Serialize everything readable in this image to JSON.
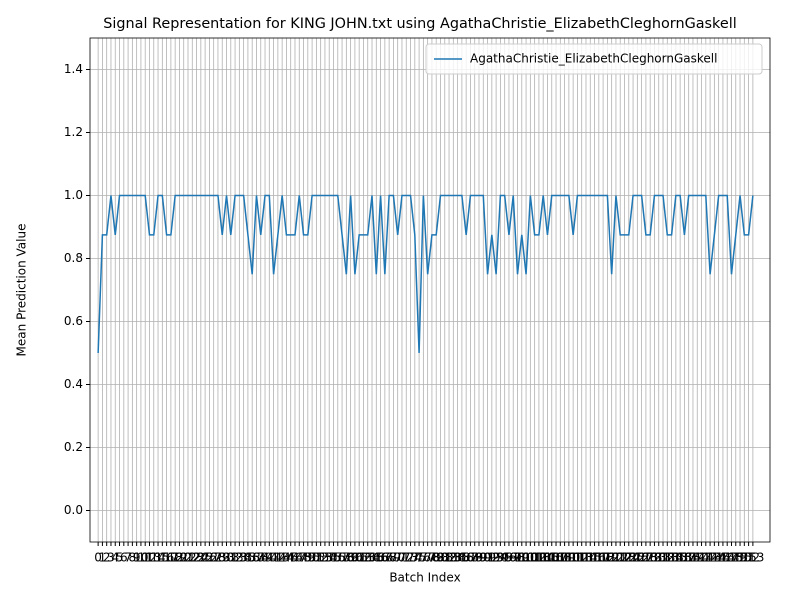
{
  "chart_data": {
    "type": "line",
    "title": "Signal Representation for KING JOHN.txt using AgathaChristie_ElizabethCleghornGaskell",
    "xlabel": "Batch Index",
    "ylabel": "Mean Prediction Value",
    "x": [
      0,
      1,
      2,
      3,
      4,
      5,
      6,
      7,
      8,
      9,
      10,
      11,
      12,
      13,
      14,
      15,
      16,
      17,
      18,
      19,
      20,
      21,
      22,
      23,
      24,
      25,
      26,
      27,
      28,
      29,
      30,
      31,
      32,
      33,
      34,
      35,
      36,
      37,
      38,
      39,
      40,
      41,
      42,
      43,
      44,
      45,
      46,
      47,
      48,
      49,
      50,
      51,
      52,
      53,
      54,
      55,
      56,
      57,
      58,
      59,
      60,
      61,
      62,
      63,
      64,
      65,
      66,
      67,
      68,
      69,
      70,
      71,
      72,
      73,
      74,
      75,
      76,
      77,
      78,
      79,
      80,
      81,
      82,
      83,
      84,
      85,
      86,
      87,
      88,
      89,
      90,
      91,
      92,
      93,
      94,
      95,
      96,
      97,
      98,
      99,
      100,
      101,
      102,
      103,
      104,
      105,
      106,
      107,
      108,
      109,
      110,
      111,
      112,
      113,
      114,
      115,
      116,
      117,
      118,
      119,
      120,
      121,
      122,
      123,
      124,
      125,
      126,
      127,
      128,
      129,
      130,
      131,
      132,
      133,
      134,
      135,
      136,
      137,
      138,
      139,
      140,
      141,
      142,
      143,
      144,
      145,
      146,
      147,
      148,
      149,
      150,
      151,
      152,
      153
    ],
    "series": [
      {
        "name": "AgathaChristie_ElizabethCleghornGaskell",
        "color": "#1f77b4",
        "values": [
          0.5,
          0.875,
          0.875,
          1,
          0.875,
          1,
          1,
          1,
          1,
          1,
          1,
          1,
          0.875,
          0.875,
          1,
          1,
          0.875,
          0.875,
          1,
          1,
          1,
          1,
          1,
          1,
          1,
          1,
          1,
          1,
          1,
          0.875,
          1,
          0.875,
          1,
          1,
          1,
          0.875,
          0.75,
          1,
          0.875,
          1,
          1,
          0.75,
          0.875,
          1,
          0.875,
          0.875,
          0.875,
          1,
          0.875,
          0.875,
          1,
          1,
          1,
          1,
          1,
          1,
          1,
          0.875,
          0.75,
          1,
          0.75,
          0.875,
          0.875,
          0.875,
          1,
          0.75,
          1,
          0.75,
          1,
          1,
          0.875,
          1,
          1,
          1,
          0.875,
          0.5,
          1,
          0.75,
          0.875,
          0.875,
          1,
          1,
          1,
          1,
          1,
          1,
          0.875,
          1,
          1,
          1,
          1,
          0.75,
          0.875,
          0.75,
          1,
          1,
          0.875,
          1,
          0.75,
          0.875,
          0.75,
          1,
          0.875,
          0.875,
          1,
          0.875,
          1,
          1,
          1,
          1,
          1,
          0.875,
          1,
          1,
          1,
          1,
          1,
          1,
          1,
          1,
          0.75,
          1,
          0.875,
          0.875,
          0.875,
          1,
          1,
          1,
          0.875,
          0.875,
          1,
          1,
          1,
          0.875,
          0.875,
          1,
          1,
          0.875,
          1,
          1,
          1,
          1,
          1,
          0.75,
          0.875,
          1,
          1,
          1,
          0.75,
          0.875,
          1,
          0.875,
          0.875,
          1
        ]
      }
    ],
    "xlim": [
      -1.9,
      157
    ],
    "ylim": [
      -0.1,
      1.5
    ],
    "xticks": [
      0,
      1,
      2,
      3,
      4,
      5,
      6,
      7,
      8,
      9,
      10,
      11,
      12,
      13,
      14,
      15,
      16,
      17,
      18,
      19,
      20,
      21,
      22,
      23,
      24,
      25,
      26,
      27,
      28,
      29,
      30,
      31,
      32,
      33,
      34,
      35,
      36,
      37,
      38,
      39,
      40,
      41,
      42,
      43,
      44,
      45,
      46,
      47,
      48,
      49,
      50,
      51,
      52,
      53,
      54,
      55,
      56,
      57,
      58,
      59,
      60,
      61,
      62,
      63,
      64,
      65,
      66,
      67,
      68,
      69,
      70,
      71,
      72,
      73,
      74,
      75,
      76,
      77,
      78,
      79,
      80,
      81,
      82,
      83,
      84,
      85,
      86,
      87,
      88,
      89,
      90,
      91,
      92,
      93,
      94,
      95,
      96,
      97,
      98,
      99,
      100,
      101,
      102,
      103,
      104,
      105,
      106,
      107,
      108,
      109,
      110,
      111,
      112,
      113,
      114,
      115,
      116,
      117,
      118,
      119,
      120,
      121,
      122,
      123,
      124,
      125,
      126,
      127,
      128,
      129,
      130,
      131,
      132,
      133,
      134,
      135,
      136,
      137,
      138,
      139,
      140,
      141,
      142,
      143,
      144,
      145,
      146,
      147,
      148,
      149,
      150,
      151,
      152,
      153
    ],
    "yticks": [
      {
        "value": 0,
        "label": "0.0"
      },
      0.2,
      0.4,
      0.6,
      0.8,
      {
        "value": 1,
        "label": "1.0"
      },
      1.2,
      1.4
    ],
    "grid": true,
    "legend": "upper right"
  }
}
